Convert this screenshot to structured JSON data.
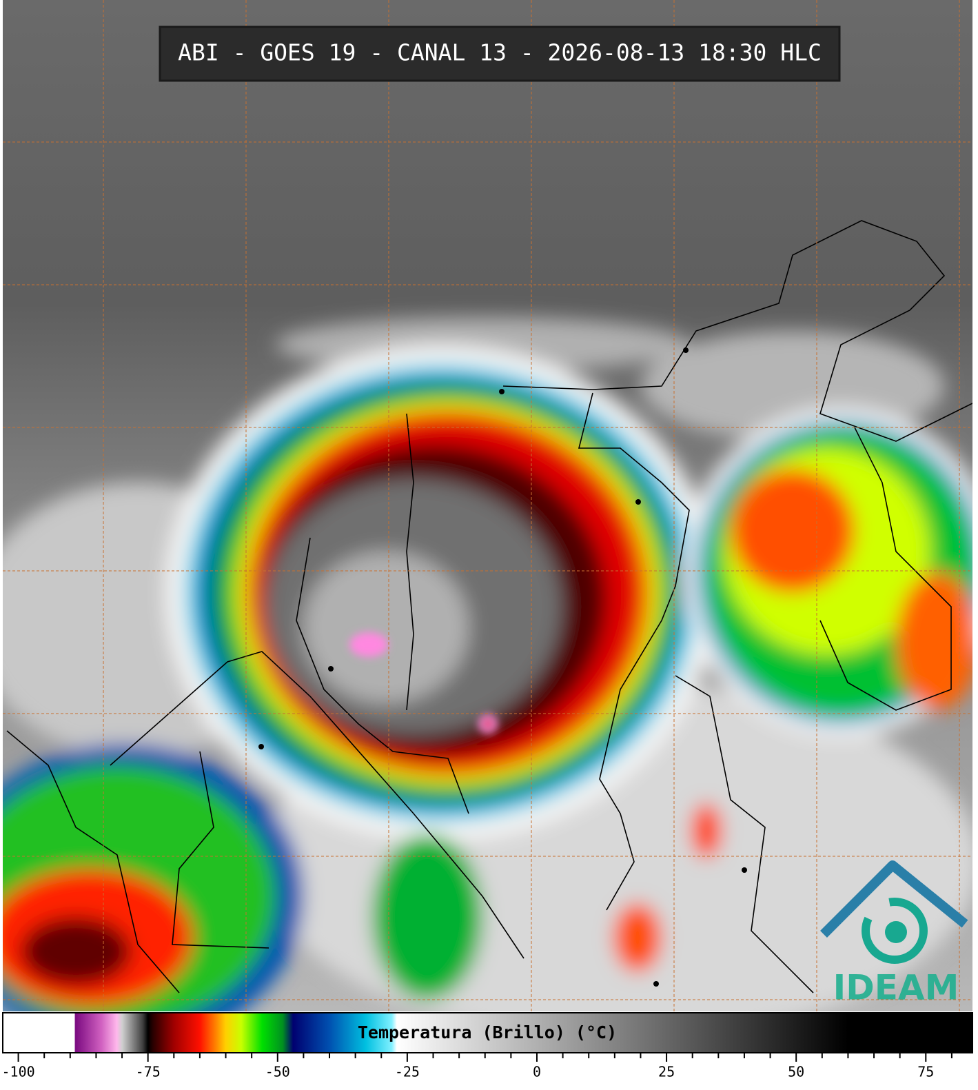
{
  "header": {
    "title": "ABI - GOES 19 - CANAL 13 - 2026-08-13 18:30 HLC"
  },
  "logo": {
    "text": "IDEAM"
  },
  "colorbar": {
    "label": "Temperatura (Brillo) (°C)",
    "lim": [
      -103,
      84
    ],
    "ticks": [
      -100,
      -75,
      -50,
      -25,
      0,
      25,
      50,
      75
    ],
    "minor_ticks": [
      -95,
      -90,
      -85,
      -80,
      -70,
      -65,
      -60,
      -55,
      -45,
      -40,
      -35,
      -30,
      -20,
      -15,
      -10,
      -5,
      5,
      10,
      15,
      20,
      30,
      35,
      40,
      45,
      55,
      60,
      65,
      70,
      80
    ],
    "colormap": [
      {
        "value": -103,
        "color": "#ffffff"
      },
      {
        "value": -89.2,
        "color": "#ffffff"
      },
      {
        "value": -89,
        "color": "#7a0a80"
      },
      {
        "value": -84,
        "color": "#d060c0"
      },
      {
        "value": -81,
        "color": "#ffb8ec"
      },
      {
        "value": -80,
        "color": "#d0d0d0"
      },
      {
        "value": -76,
        "color": "#404040"
      },
      {
        "value": -75,
        "color": "#000000"
      },
      {
        "value": -74,
        "color": "#2a0000"
      },
      {
        "value": -70,
        "color": "#a00000"
      },
      {
        "value": -65,
        "color": "#ff1000"
      },
      {
        "value": -62,
        "color": "#ff8000"
      },
      {
        "value": -60,
        "color": "#ffd000"
      },
      {
        "value": -57,
        "color": "#c8ff00"
      },
      {
        "value": -53,
        "color": "#00e000"
      },
      {
        "value": -49,
        "color": "#009020"
      },
      {
        "value": -47,
        "color": "#000070"
      },
      {
        "value": -40,
        "color": "#0050b0"
      },
      {
        "value": -33,
        "color": "#00c0e0"
      },
      {
        "value": -28,
        "color": "#80f0ff"
      },
      {
        "value": -27,
        "color": "#ffffff"
      },
      {
        "value": 60,
        "color": "#000000"
      },
      {
        "value": 84,
        "color": "#000000"
      }
    ]
  }
}
